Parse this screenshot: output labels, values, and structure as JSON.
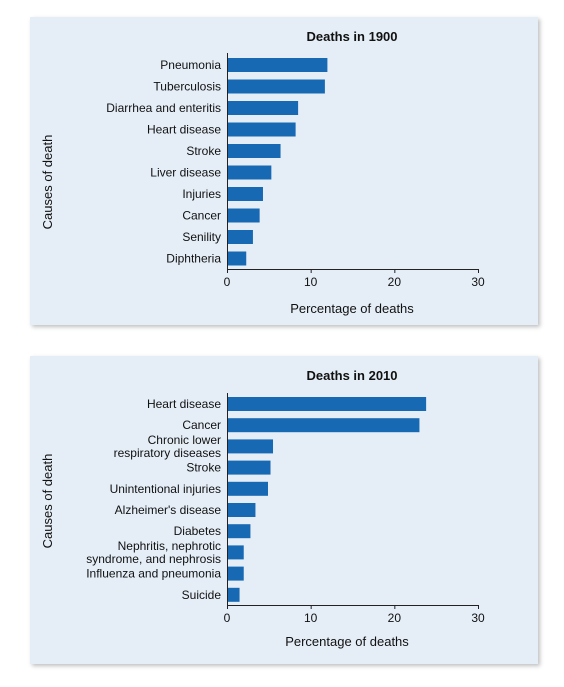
{
  "charts": [
    {
      "chart_data": {
        "type": "bar",
        "orientation": "horizontal",
        "title": "Deaths in 1900",
        "xlabel": "Percentage of deaths",
        "ylabel": "Causes of death",
        "xlim": [
          0,
          30
        ],
        "xticks": [
          "0",
          "10",
          "20",
          "30"
        ],
        "categories": [
          [
            "Pneumonia"
          ],
          [
            "Tuberculosis"
          ],
          [
            "Diarrhea and enteritis"
          ],
          [
            "Heart disease"
          ],
          [
            "Stroke"
          ],
          [
            "Liver disease"
          ],
          [
            "Injuries"
          ],
          [
            "Cancer"
          ],
          [
            "Senility"
          ],
          [
            "Diphtheria"
          ]
        ],
        "values": [
          12.0,
          11.7,
          8.5,
          8.2,
          6.4,
          5.3,
          4.3,
          3.9,
          3.1,
          2.3
        ],
        "bar_color": "#1769b3",
        "grid": false
      }
    },
    {
      "chart_data": {
        "type": "bar",
        "orientation": "horizontal",
        "title": "Deaths in 2010",
        "xlabel": "Percentage of deaths",
        "ylabel": "Causes of death",
        "xlim": [
          0,
          30
        ],
        "xticks": [
          "0",
          "10",
          "20",
          "30"
        ],
        "categories": [
          [
            "Heart disease"
          ],
          [
            "Cancer"
          ],
          [
            "Chronic lower",
            "respiratory diseases"
          ],
          [
            "Stroke"
          ],
          [
            "Unintentional injuries"
          ],
          [
            "Alzheimer's disease"
          ],
          [
            "Diabetes"
          ],
          [
            "Nephritis, nephrotic",
            "syndrome, and nephrosis"
          ],
          [
            "Influenza and pneumonia"
          ],
          [
            "Suicide"
          ]
        ],
        "values": [
          23.8,
          23.0,
          5.5,
          5.2,
          4.9,
          3.4,
          2.8,
          2.0,
          2.0,
          1.5
        ],
        "bar_color": "#1769b3",
        "grid": false
      }
    }
  ]
}
